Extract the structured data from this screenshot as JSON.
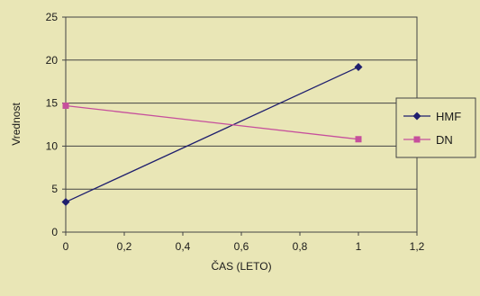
{
  "chart_data": {
    "type": "scatter",
    "title": "",
    "xlabel": "ČAS (LETO)",
    "ylabel": "Vrednost",
    "xlim": [
      0,
      1.2
    ],
    "ylim": [
      0,
      25
    ],
    "x_ticks": [
      "0",
      "0,2",
      "0,4",
      "0,6",
      "0,8",
      "1",
      "1,2"
    ],
    "y_ticks": [
      "0",
      "5",
      "10",
      "15",
      "20",
      "25"
    ],
    "grid": "horizontal",
    "legend_position": "right",
    "series": [
      {
        "name": "HMF",
        "color": "#1f1f6e",
        "marker": "diamond",
        "x": [
          0,
          1
        ],
        "y": [
          3.5,
          19.2
        ]
      },
      {
        "name": "DN",
        "color": "#c64f9c",
        "marker": "square",
        "x": [
          0,
          1
        ],
        "y": [
          14.7,
          10.8
        ]
      }
    ]
  }
}
